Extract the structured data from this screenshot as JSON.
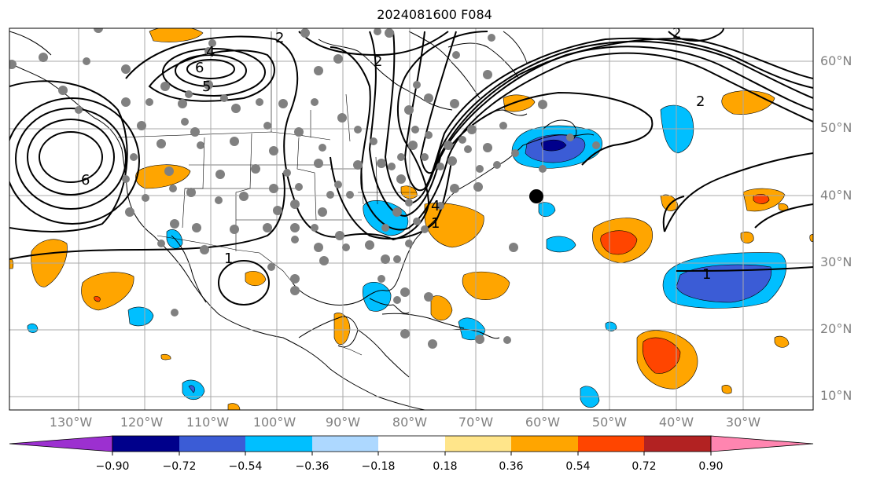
{
  "title": "2024081600 F084",
  "lon_labels": [
    "130°W",
    "120°W",
    "110°W",
    "100°W",
    "90°W",
    "80°W",
    "70°W",
    "60°W",
    "50°W",
    "40°W",
    "30°W"
  ],
  "lat_labels": [
    "60°N",
    "50°N",
    "40°N",
    "30°N",
    "20°N",
    "10°N"
  ],
  "contour_labels": [
    "2",
    "2",
    "4",
    "5",
    "6",
    "2",
    "2",
    "1",
    "1",
    "4",
    "1",
    "6"
  ],
  "colorbar": {
    "ticks": [
      "−0.90",
      "−0.72",
      "−0.54",
      "−0.36",
      "−0.18",
      "0.18",
      "0.36",
      "0.54",
      "0.72",
      "0.90"
    ],
    "colors": [
      "#9c30d0",
      "#00008b",
      "#3b5cd6",
      "#00bfff",
      "#add8ff",
      "#ffffff",
      "#ffe58a",
      "#ffa500",
      "#ff4500",
      "#b22222",
      "#ff85b0"
    ]
  },
  "colors": {
    "contour": "#000000",
    "grid": "#a9a9a9",
    "station_dot": "#808080",
    "marker": "#000000"
  }
}
